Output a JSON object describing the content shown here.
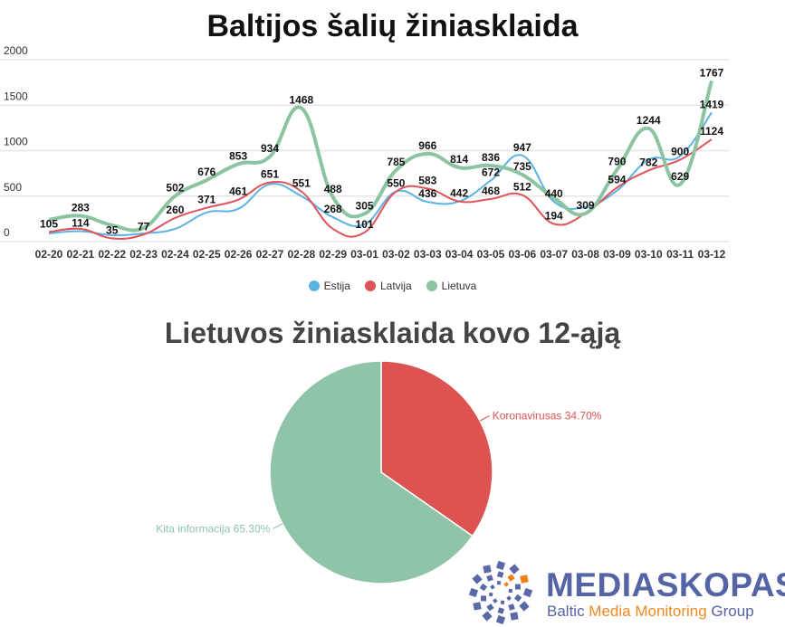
{
  "chart_data": [
    {
      "type": "line",
      "title": "Baltijos šalių žiniasklaida",
      "categories": [
        "02-20",
        "02-21",
        "02-22",
        "02-23",
        "02-24",
        "02-25",
        "02-26",
        "02-27",
        "02-28",
        "02-29",
        "03-01",
        "03-02",
        "03-03",
        "03-04",
        "03-05",
        "03-06",
        "03-07",
        "03-08",
        "03-09",
        "03-10",
        "03-11",
        "03-12"
      ],
      "yticks": [
        0,
        500,
        1000,
        1500,
        2000
      ],
      "ylim": [
        0,
        2000
      ],
      "grid": true,
      "legend_position": "bottom",
      "series": [
        {
          "name": "Estija",
          "color": "#5bb3e4",
          "values": [
            90,
            114,
            70,
            90,
            140,
            320,
            360,
            630,
            500,
            268,
            190,
            550,
            436,
            442,
            672,
            947,
            440,
            380,
            560,
            900,
            940,
            1419
          ]
        },
        {
          "name": "Latvija",
          "color": "#e05358",
          "values": [
            105,
            140,
            35,
            77,
            260,
            371,
            461,
            651,
            551,
            140,
            101,
            550,
            583,
            442,
            468,
            512,
            194,
            309,
            594,
            782,
            900,
            1124
          ]
        },
        {
          "name": "Lietuva",
          "color": "#8cc3a1",
          "values": [
            240,
            283,
            180,
            150,
            502,
            676,
            853,
            934,
            1468,
            488,
            305,
            785,
            966,
            814,
            836,
            735,
            480,
            309,
            790,
            1244,
            629,
            1767
          ]
        }
      ],
      "data_labels": [
        {
          "x": "02-20",
          "value": 105
        },
        {
          "x": "02-21",
          "value": 283
        },
        {
          "x": "02-21",
          "value": 114
        },
        {
          "x": "02-22",
          "value": 35
        },
        {
          "x": "02-23",
          "value": 77
        },
        {
          "x": "02-24",
          "value": 502
        },
        {
          "x": "02-24",
          "value": 260
        },
        {
          "x": "02-25",
          "value": 676
        },
        {
          "x": "02-25",
          "value": 371
        },
        {
          "x": "02-26",
          "value": 853
        },
        {
          "x": "02-26",
          "value": 461
        },
        {
          "x": "02-27",
          "value": 934
        },
        {
          "x": "02-27",
          "value": 651
        },
        {
          "x": "02-28",
          "value": 1468
        },
        {
          "x": "02-28",
          "value": 551
        },
        {
          "x": "02-29",
          "value": 488
        },
        {
          "x": "02-29",
          "value": 268
        },
        {
          "x": "03-01",
          "value": 305
        },
        {
          "x": "03-01",
          "value": 101
        },
        {
          "x": "03-02",
          "value": 785
        },
        {
          "x": "03-02",
          "value": 550
        },
        {
          "x": "03-03",
          "value": 966
        },
        {
          "x": "03-03",
          "value": 583
        },
        {
          "x": "03-03",
          "value": 436
        },
        {
          "x": "03-04",
          "value": 814
        },
        {
          "x": "03-04",
          "value": 442
        },
        {
          "x": "03-05",
          "value": 836
        },
        {
          "x": "03-05",
          "value": 672
        },
        {
          "x": "03-05",
          "value": 468
        },
        {
          "x": "03-06",
          "value": 947
        },
        {
          "x": "03-06",
          "value": 735
        },
        {
          "x": "03-06",
          "value": 512
        },
        {
          "x": "03-07",
          "value": 440
        },
        {
          "x": "03-07",
          "value": 194
        },
        {
          "x": "03-08",
          "value": 309
        },
        {
          "x": "03-09",
          "value": 790
        },
        {
          "x": "03-09",
          "value": 594
        },
        {
          "x": "03-10",
          "value": 1244
        },
        {
          "x": "03-10",
          "value": 782
        },
        {
          "x": "03-11",
          "value": 900
        },
        {
          "x": "03-11",
          "value": 629
        },
        {
          "x": "03-12",
          "value": 1767
        },
        {
          "x": "03-12",
          "value": 1419
        },
        {
          "x": "03-12",
          "value": 1124
        }
      ]
    },
    {
      "type": "pie",
      "title": "Lietuvos žiniasklaida kovo 12-ąją",
      "slices": [
        {
          "label": "Koronavirusas 34.70%",
          "value": 34.7,
          "color": "#dc5352"
        },
        {
          "label": "Kita informacija 65.30%",
          "value": 65.3,
          "color": "#8fc4a8"
        }
      ]
    }
  ],
  "logo": {
    "name": "MEDIASKOPAS",
    "tagline_start": "Baltic ",
    "tagline_highlight": "Media Monitoring",
    "tagline_end": " Group"
  }
}
